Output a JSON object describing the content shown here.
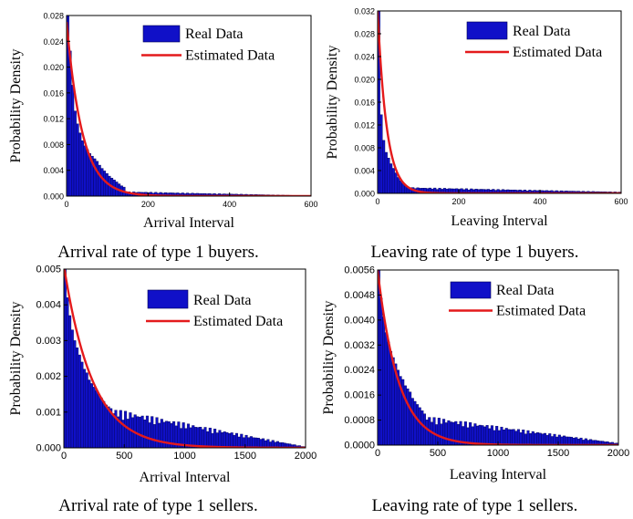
{
  "chart_data": [
    {
      "type": "bar",
      "caption": "Arrival rate of type 1 buyers.",
      "xlabel": "Arrival Interval",
      "ylabel": "Probability Density",
      "xlim": [
        0,
        600
      ],
      "ylim": [
        0,
        0.028
      ],
      "xticks": [
        "0",
        "200",
        "400",
        "600"
      ],
      "xtick_values": [
        0,
        200,
        400,
        600
      ],
      "yticks": [
        "0.000",
        "0.004",
        "0.008",
        "0.012",
        "0.016",
        "0.020",
        "0.024",
        "0.028"
      ],
      "ytick_values": [
        0,
        0.004,
        0.008,
        0.012,
        0.016,
        0.02,
        0.024,
        0.028
      ],
      "legend": [
        "Real Data",
        "Estimated Data"
      ],
      "legend_position": "top-right",
      "bin_width": 6,
      "series": [
        {
          "name": "Real Data",
          "kind": "histogram",
          "color": "#1010c8",
          "values": [
            0.0295,
            0.0225,
            0.0172,
            0.0132,
            0.0112,
            0.0098,
            0.0086,
            0.0078,
            0.0072,
            0.0066,
            0.0062,
            0.0058,
            0.0054,
            0.0048,
            0.0043,
            0.0039,
            0.0035,
            0.0031,
            0.0028,
            0.0025,
            0.0022,
            0.0019,
            0.0016,
            0.0014
          ]
        },
        {
          "name": "Estimated Data",
          "kind": "exponential",
          "color": "#e41a1c",
          "a": 0.027,
          "rate": 0.026
        }
      ],
      "tail": {
        "value": 0.0006,
        "end_value": 5e-05
      }
    },
    {
      "type": "bar",
      "caption": "Leaving rate of type 1 buyers.",
      "xlabel": "Leaving Interval",
      "ylabel": "Probability Density",
      "xlim": [
        0,
        600
      ],
      "ylim": [
        0,
        0.032
      ],
      "xticks": [
        "0",
        "200",
        "400",
        "600"
      ],
      "xtick_values": [
        0,
        200,
        400,
        600
      ],
      "yticks": [
        "0.000",
        "0.004",
        "0.008",
        "0.012",
        "0.016",
        "0.020",
        "0.024",
        "0.028",
        "0.032"
      ],
      "ytick_values": [
        0,
        0.004,
        0.008,
        0.012,
        0.016,
        0.02,
        0.024,
        0.028,
        0.032
      ],
      "legend": [
        "Real Data",
        "Estimated Data"
      ],
      "legend_position": "top-right",
      "bin_width": 6,
      "series": [
        {
          "name": "Real Data",
          "kind": "histogram",
          "color": "#1010c8",
          "values": [
            0.032,
            0.0138,
            0.0093,
            0.0072,
            0.0062,
            0.0052,
            0.0044,
            0.0036,
            0.0028,
            0.0022,
            0.0017,
            0.0013,
            0.0011,
            0.001
          ]
        },
        {
          "name": "Estimated Data",
          "kind": "exponential",
          "color": "#e41a1c",
          "a": 0.032,
          "rate": 0.045
        }
      ],
      "tail": {
        "value": 0.0009,
        "end_value": 0.0002
      }
    },
    {
      "type": "bar",
      "caption": "Arrival rate of type 1 sellers.",
      "xlabel": "Arrival Interval",
      "ylabel": "Probability Density",
      "xlim": [
        0,
        2000
      ],
      "ylim": [
        0,
        0.005
      ],
      "xticks": [
        "0",
        "500",
        "1000",
        "1500",
        "2000"
      ],
      "xtick_values": [
        0,
        500,
        1000,
        1500,
        2000
      ],
      "yticks": [
        "0.000",
        "0.001",
        "0.002",
        "0.003",
        "0.004",
        "0.005"
      ],
      "ytick_values": [
        0,
        0.001,
        0.002,
        0.003,
        0.004,
        0.005
      ],
      "legend": [
        "Real Data",
        "Estimated Data"
      ],
      "legend_position": "top-right",
      "bin_width": 20,
      "series": [
        {
          "name": "Real Data",
          "kind": "histogram",
          "color": "#1010c8",
          "values": [
            0.0052,
            0.0042,
            0.0037,
            0.0033,
            0.003,
            0.0028,
            0.0026,
            0.0024,
            0.0022,
            0.0021,
            0.0019,
            0.0018,
            0.0017,
            0.0016,
            0.0015,
            0.0014,
            0.0013,
            0.0012,
            0.00115,
            0.0011
          ]
        },
        {
          "name": "Estimated Data",
          "kind": "exponential",
          "color": "#e41a1c",
          "a": 0.0051,
          "rate": 0.0042
        }
      ],
      "tail": {
        "value": 0.00095,
        "end_value": 2e-05
      }
    },
    {
      "type": "bar",
      "caption": "Leaving rate of type 1 sellers.",
      "xlabel": "Leaving Interval",
      "ylabel": "Probability Density",
      "xlim": [
        0,
        2000
      ],
      "ylim": [
        0,
        0.0056
      ],
      "xticks": [
        "0",
        "500",
        "1000",
        "1500",
        "2000"
      ],
      "xtick_values": [
        0,
        500,
        1000,
        1500,
        2000
      ],
      "yticks": [
        "0.0000",
        "0.0008",
        "0.0016",
        "0.0024",
        "0.0032",
        "0.0040",
        "0.0048",
        "0.0056"
      ],
      "ytick_values": [
        0,
        0.0008,
        0.0016,
        0.0024,
        0.0032,
        0.004,
        0.0048,
        0.0056
      ],
      "legend": [
        "Real Data",
        "Estimated Data"
      ],
      "legend_position": "top-right",
      "bin_width": 20,
      "series": [
        {
          "name": "Real Data",
          "kind": "histogram",
          "color": "#1010c8",
          "values": [
            0.0056,
            0.0047,
            0.0041,
            0.0036,
            0.0033,
            0.003,
            0.0028,
            0.0026,
            0.0024,
            0.0022,
            0.0021,
            0.0019,
            0.0018,
            0.0017,
            0.0015,
            0.0014,
            0.0013,
            0.0012,
            0.0011,
            0.001
          ]
        },
        {
          "name": "Estimated Data",
          "kind": "exponential",
          "color": "#e41a1c",
          "a": 0.0056,
          "rate": 0.0058
        }
      ],
      "tail": {
        "value": 0.0008,
        "end_value": 5e-05
      }
    }
  ]
}
